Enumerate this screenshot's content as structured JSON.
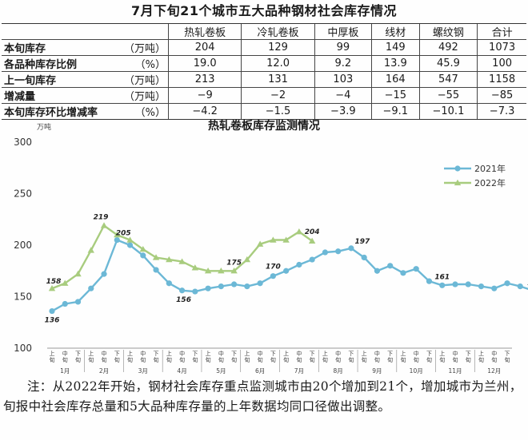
{
  "table": {
    "title": "7月下旬21个城市五大品种钢材社会库存情况",
    "columns": [
      "热轧卷板",
      "冷轧卷板",
      "中厚板",
      "线材",
      "螺纹钢",
      "合计"
    ],
    "rows": [
      {
        "label": "本旬库存",
        "unit": "（万吨）",
        "values": [
          "204",
          "129",
          "99",
          "149",
          "492",
          "1073"
        ]
      },
      {
        "label": "各品种库存比例",
        "unit": "（%）",
        "values": [
          "19.0",
          "12.0",
          "9.2",
          "13.9",
          "45.9",
          "100"
        ]
      },
      {
        "label": "上一旬库存",
        "unit": "（万吨）",
        "values": [
          "213",
          "131",
          "103",
          "164",
          "547",
          "1158"
        ]
      },
      {
        "label": "增减量",
        "unit": "（万吨）",
        "values": [
          "−9",
          "−2",
          "−4",
          "−15",
          "−55",
          "−85"
        ]
      },
      {
        "label": "本旬库存环比增减率",
        "unit": "（%）",
        "values": [
          "−4.2",
          "−1.5",
          "−3.9",
          "−9.1",
          "−10.1",
          "−7.3"
        ]
      }
    ]
  },
  "chart_data": {
    "type": "line",
    "title": "热轧卷板库存监测情况",
    "ylabel": "万吨",
    "ylim": [
      100,
      300
    ],
    "yticks": [
      "100",
      "150",
      "200",
      "250",
      "300"
    ],
    "x_period_labels": [
      "上旬",
      "中旬",
      "下旬"
    ],
    "x_month_labels": [
      "1月",
      "2月",
      "3月",
      "4月",
      "5月",
      "6月",
      "7月",
      "8月",
      "9月",
      "10月",
      "11月",
      "12月"
    ],
    "series": [
      {
        "name": "2021年",
        "color": "#6cb8d6",
        "marker": "circle",
        "values": [
          136,
          143,
          145,
          158,
          172,
          205,
          200,
          190,
          176,
          163,
          156,
          155,
          158,
          160,
          162,
          160,
          163,
          170,
          175,
          181,
          186,
          193,
          194,
          197,
          188,
          175,
          180,
          173,
          177,
          165,
          161,
          162,
          162,
          160,
          158,
          163,
          160,
          156
        ]
      },
      {
        "name": "2022年",
        "color": "#a8cc7e",
        "marker": "triangle",
        "values": [
          158,
          163,
          172,
          195,
          219,
          210,
          205,
          196,
          188,
          186,
          184,
          178,
          175,
          175,
          175,
          186,
          201,
          205,
          205,
          213,
          204
        ]
      }
    ],
    "data_labels": [
      {
        "series": 0,
        "index": 0,
        "text": "136"
      },
      {
        "series": 1,
        "index": 0,
        "text": "158"
      },
      {
        "series": 1,
        "index": 4,
        "text": "219"
      },
      {
        "series": 0,
        "index": 5,
        "text": "205"
      },
      {
        "series": 0,
        "index": 10,
        "text": "156"
      },
      {
        "series": 1,
        "index": 14,
        "text": "175"
      },
      {
        "series": 0,
        "index": 17,
        "text": "170"
      },
      {
        "series": 1,
        "index": 20,
        "text": "204"
      },
      {
        "series": 0,
        "index": 23,
        "text": "197"
      },
      {
        "series": 0,
        "index": 30,
        "text": "161"
      },
      {
        "series": 0,
        "index": 37,
        "text": "156"
      }
    ],
    "legend_position": "top-right"
  },
  "note": "注：从2022年开始，钢材社会库存重点监测城市由20个增加到21个，增加城市为兰州，旬报中社会库存总量和5大品种库存量的上年数据均同口径做出调整。"
}
